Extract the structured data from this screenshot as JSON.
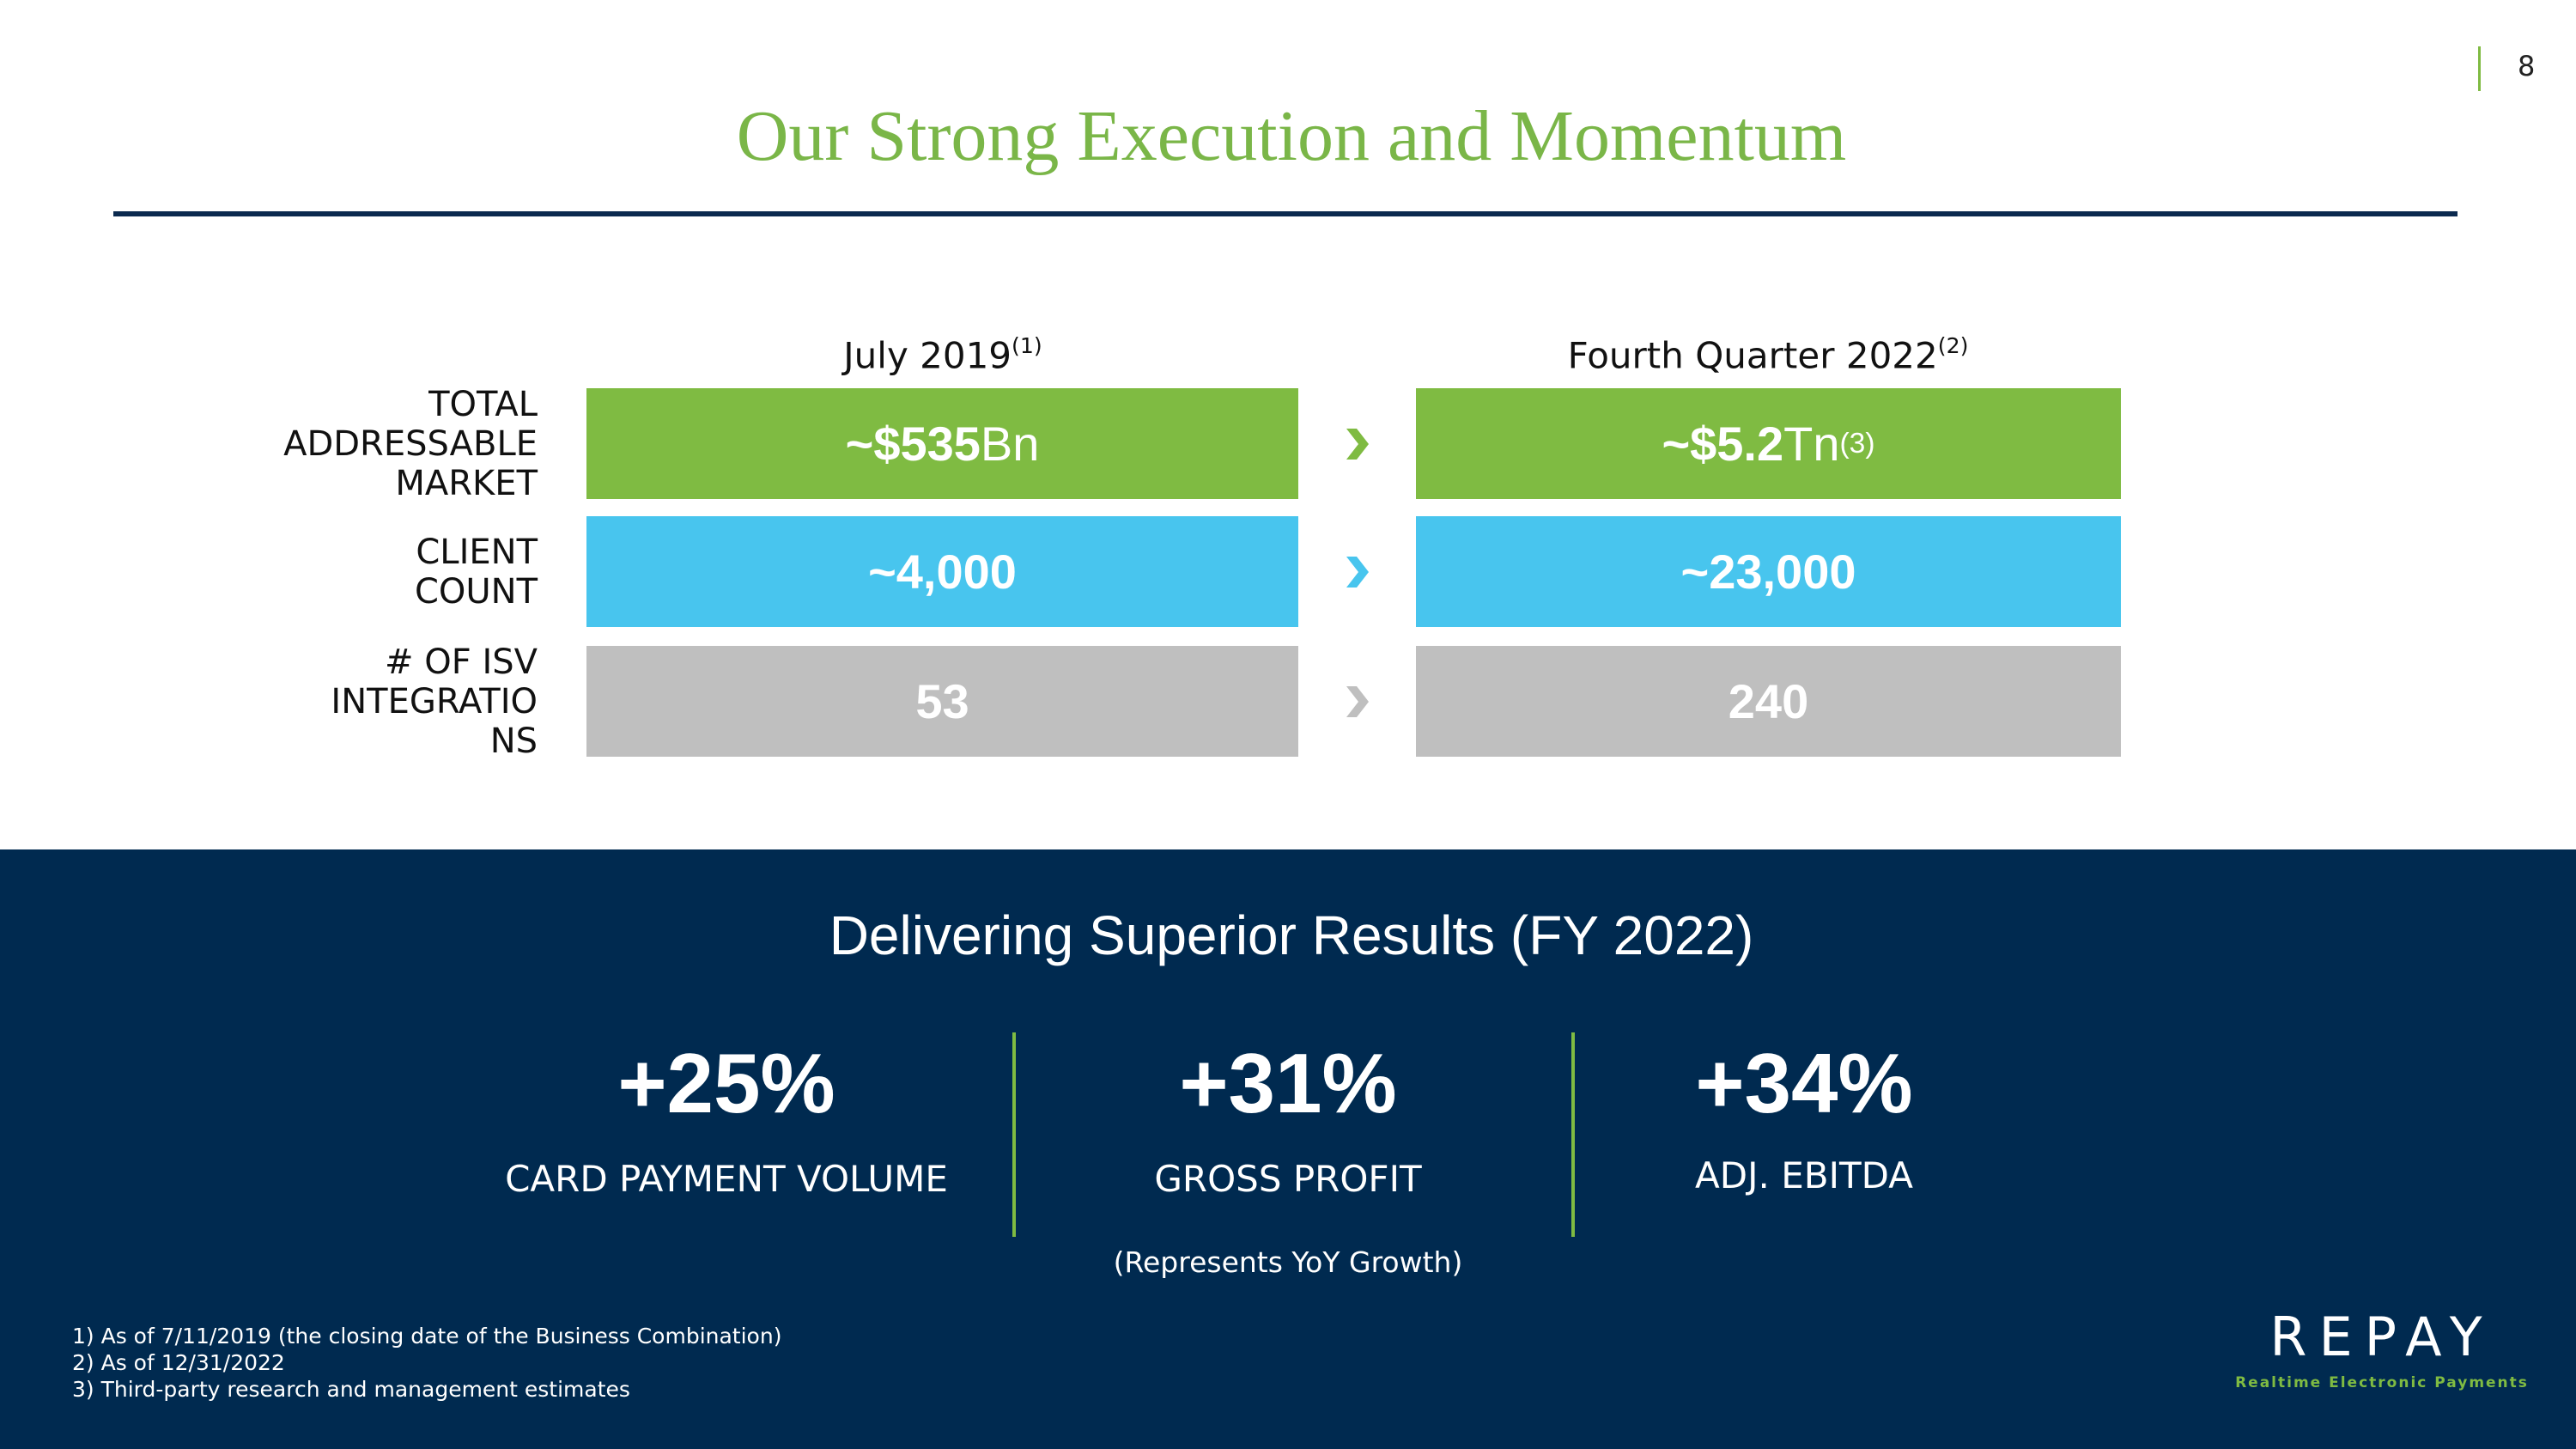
{
  "page_number": "8",
  "title": "Our Strong Execution and Momentum",
  "columns": [
    {
      "text": "July 2019",
      "sup": "(1)"
    },
    {
      "text": "Fourth Quarter 2022",
      "sup": "(2)"
    }
  ],
  "rows": [
    {
      "label": [
        "TOTAL",
        "ADDRESSABLE",
        "MARKET"
      ],
      "before": {
        "bold": "~$535",
        "normal": "Bn"
      },
      "after": {
        "bold": "~$5.2",
        "normal": "Tn",
        "sup": "(3)"
      }
    },
    {
      "label": [
        "CLIENT",
        "COUNT"
      ],
      "before": {
        "bold": "~4,000"
      },
      "after": {
        "bold": "~23,000"
      }
    },
    {
      "label": [
        "# OF ISV",
        "INTEGRATIO",
        "NS"
      ],
      "before": {
        "bold": "53"
      },
      "after": {
        "bold": "240"
      }
    }
  ],
  "results": {
    "heading": "Delivering Superior Results (FY 2022)",
    "metrics": [
      {
        "value": "+25%",
        "label": "CARD PAYMENT VOLUME"
      },
      {
        "value": "+31%",
        "label": "GROSS PROFIT"
      },
      {
        "value": "+34%",
        "label": "ADJ. EBITDA"
      }
    ],
    "note": "(Represents YoY Growth)"
  },
  "footnotes": [
    "1)  As of 7/11/2019 (the closing date of the Business Combination)",
    "2)  As of 12/31/2022",
    "3)  Third-party research and management estimates"
  ],
  "logo": {
    "name": "REPAY",
    "tagline": "Realtime Electronic Payments"
  }
}
